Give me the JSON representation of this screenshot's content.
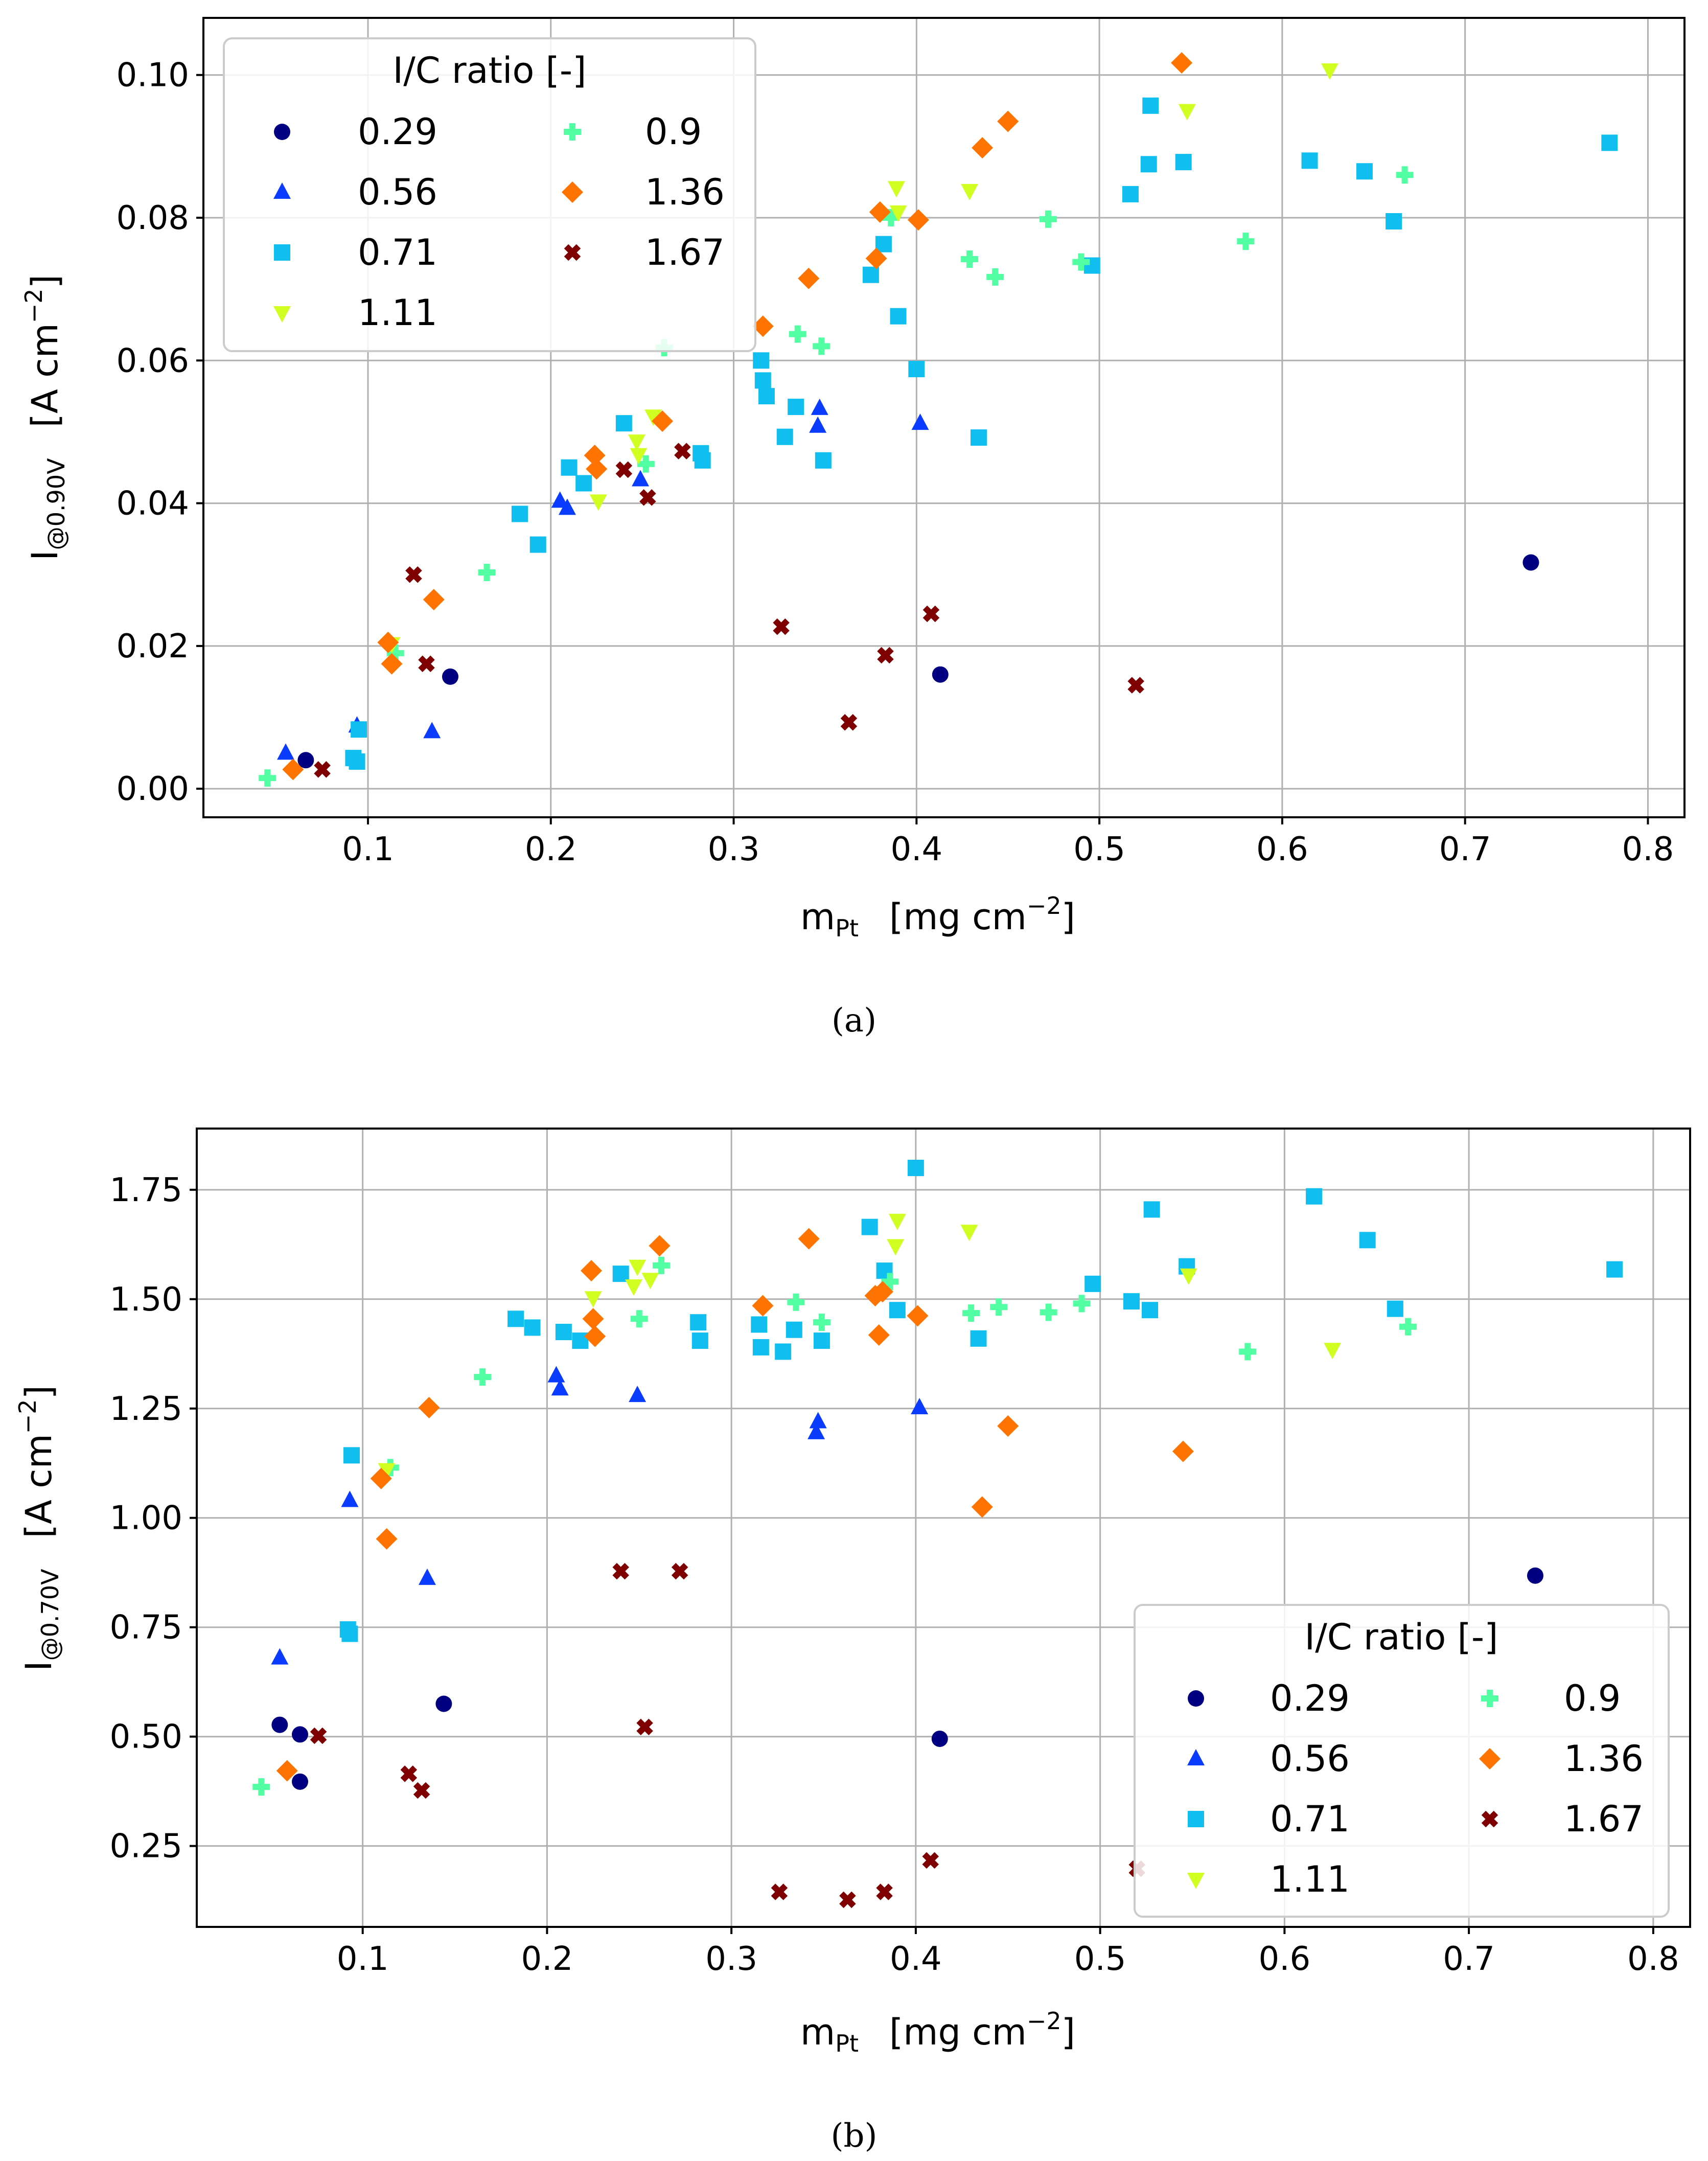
{
  "colors": {
    "0.29": "#000080",
    "0.56": "#0a3cff",
    "0.71": "#10bef0",
    "0.9": "#52ffa3",
    "1.11": "#d0ff22",
    "1.36": "#ff7300",
    "1.67": "#7f0000"
  },
  "chart_data": [
    {
      "type": "scatter",
      "caption": "(a)",
      "xlabel": "m",
      "xlabel_sub": "Pt",
      "xlabel_units": "[mg cm",
      "xlabel_exp": "−2",
      "xlabel_close": "]",
      "ylabel": "I",
      "ylabel_sub": "@0.90V",
      "ylabel_units": "[A cm",
      "ylabel_exp": "−2",
      "ylabel_close": "]",
      "xlim": [
        0.01,
        0.82
      ],
      "ylim": [
        -0.004,
        0.108
      ],
      "xticks": [
        "0.1",
        "0.2",
        "0.3",
        "0.4",
        "0.5",
        "0.6",
        "0.7",
        "0.8"
      ],
      "yticks": [
        "0.00",
        "0.02",
        "0.04",
        "0.06",
        "0.08",
        "0.10"
      ],
      "legend": {
        "title": "I/C ratio [-]",
        "placement": "upper-left",
        "col1": [
          "0.29",
          "0.56",
          "0.71",
          "1.11"
        ],
        "col2": [
          "0.9",
          "1.36",
          "1.67"
        ]
      },
      "series": [
        {
          "name": "0.29",
          "marker": "circle",
          "points": [
            [
              0.066,
              0.004
            ],
            [
              0.145,
              0.0157
            ],
            [
              0.413,
              0.016
            ],
            [
              0.736,
              0.0317
            ]
          ]
        },
        {
          "name": "0.56",
          "marker": "triangle",
          "points": [
            [
              0.055,
              0.005
            ],
            [
              0.094,
              0.0088
            ],
            [
              0.135,
              0.008
            ],
            [
              0.205,
              0.0403
            ],
            [
              0.209,
              0.0393
            ],
            [
              0.249,
              0.0433
            ],
            [
              0.346,
              0.0508
            ],
            [
              0.347,
              0.0533
            ],
            [
              0.402,
              0.0512
            ]
          ]
        },
        {
          "name": "0.71",
          "marker": "square",
          "points": [
            [
              0.092,
              0.0043
            ],
            [
              0.094,
              0.0038
            ],
            [
              0.095,
              0.0083
            ],
            [
              0.183,
              0.0385
            ],
            [
              0.193,
              0.0342
            ],
            [
              0.21,
              0.045
            ],
            [
              0.218,
              0.0428
            ],
            [
              0.24,
              0.0512
            ],
            [
              0.282,
              0.047
            ],
            [
              0.283,
              0.046
            ],
            [
              0.315,
              0.06
            ],
            [
              0.316,
              0.0572
            ],
            [
              0.318,
              0.055
            ],
            [
              0.328,
              0.0493
            ],
            [
              0.334,
              0.0535
            ],
            [
              0.349,
              0.046
            ],
            [
              0.375,
              0.072
            ],
            [
              0.382,
              0.0763
            ],
            [
              0.39,
              0.0662
            ],
            [
              0.4,
              0.0588
            ],
            [
              0.434,
              0.0492
            ],
            [
              0.496,
              0.0733
            ],
            [
              0.517,
              0.0833
            ],
            [
              0.527,
              0.0875
            ],
            [
              0.528,
              0.0957
            ],
            [
              0.546,
              0.0878
            ],
            [
              0.615,
              0.088
            ],
            [
              0.645,
              0.0865
            ],
            [
              0.661,
              0.0795
            ],
            [
              0.779,
              0.0905
            ]
          ]
        },
        {
          "name": "0.9",
          "marker": "plus",
          "points": [
            [
              0.045,
              0.0015
            ],
            [
              0.115,
              0.019
            ],
            [
              0.165,
              0.0303
            ],
            [
              0.252,
              0.0455
            ],
            [
              0.262,
              0.0618
            ],
            [
              0.335,
              0.0637
            ],
            [
              0.348,
              0.062
            ],
            [
              0.386,
              0.08
            ],
            [
              0.429,
              0.0742
            ],
            [
              0.443,
              0.0717
            ],
            [
              0.472,
              0.0798
            ],
            [
              0.49,
              0.0738
            ],
            [
              0.58,
              0.0767
            ],
            [
              0.667,
              0.086
            ]
          ]
        },
        {
          "name": "1.11",
          "marker": "triangle-down",
          "points": [
            [
              0.113,
              0.0203
            ],
            [
              0.226,
              0.0403
            ],
            [
              0.247,
              0.0487
            ],
            [
              0.248,
              0.0468
            ],
            [
              0.256,
              0.0522
            ],
            [
              0.389,
              0.0842
            ],
            [
              0.39,
              0.0808
            ],
            [
              0.429,
              0.0838
            ],
            [
              0.548,
              0.095
            ],
            [
              0.626,
              0.1007
            ]
          ]
        },
        {
          "name": "1.36",
          "marker": "diamond",
          "points": [
            [
              0.059,
              0.0027
            ],
            [
              0.111,
              0.0205
            ],
            [
              0.113,
              0.0175
            ],
            [
              0.136,
              0.0265
            ],
            [
              0.224,
              0.0467
            ],
            [
              0.225,
              0.0448
            ],
            [
              0.261,
              0.0515
            ],
            [
              0.316,
              0.0648
            ],
            [
              0.341,
              0.0715
            ],
            [
              0.378,
              0.0743
            ],
            [
              0.38,
              0.0808
            ],
            [
              0.401,
              0.0797
            ],
            [
              0.436,
              0.0898
            ],
            [
              0.45,
              0.0935
            ],
            [
              0.545,
              0.1017
            ]
          ]
        },
        {
          "name": "1.67",
          "marker": "x",
          "points": [
            [
              0.075,
              0.0027
            ],
            [
              0.125,
              0.03
            ],
            [
              0.132,
              0.0175
            ],
            [
              0.24,
              0.0447
            ],
            [
              0.253,
              0.0408
            ],
            [
              0.272,
              0.0473
            ],
            [
              0.326,
              0.0227
            ],
            [
              0.363,
              0.0093
            ],
            [
              0.383,
              0.0187
            ],
            [
              0.408,
              0.0245
            ],
            [
              0.52,
              0.0145
            ]
          ]
        }
      ]
    },
    {
      "type": "scatter",
      "caption": "(b)",
      "xlabel": "m",
      "xlabel_sub": "Pt",
      "xlabel_units": "[mg cm",
      "xlabel_exp": "−2",
      "xlabel_close": "]",
      "ylabel": "I",
      "ylabel_sub": "@0.70V",
      "ylabel_units": "[A cm",
      "ylabel_exp": "−2",
      "ylabel_close": "]",
      "xlim": [
        0.01,
        0.82
      ],
      "ylim": [
        0.065,
        1.89
      ],
      "xticks": [
        "0.1",
        "0.2",
        "0.3",
        "0.4",
        "0.5",
        "0.6",
        "0.7",
        "0.8"
      ],
      "yticks": [
        "0.25",
        "0.50",
        "0.75",
        "1.00",
        "1.25",
        "1.50",
        "1.75"
      ],
      "legend": {
        "title": "I/C ratio [-]",
        "placement": "lower-right",
        "col1": [
          "0.29",
          "0.56",
          "0.71",
          "1.11"
        ],
        "col2": [
          "0.9",
          "1.36",
          "1.67"
        ]
      },
      "series": [
        {
          "name": "0.29",
          "marker": "circle",
          "points": [
            [
              0.055,
              0.527
            ],
            [
              0.066,
              0.505
            ],
            [
              0.066,
              0.397
            ],
            [
              0.144,
              0.575
            ],
            [
              0.413,
              0.495
            ],
            [
              0.736,
              0.868
            ]
          ]
        },
        {
          "name": "0.56",
          "marker": "triangle",
          "points": [
            [
              0.055,
              0.68
            ],
            [
              0.093,
              1.04
            ],
            [
              0.135,
              0.862
            ],
            [
              0.205,
              1.325
            ],
            [
              0.207,
              1.295
            ],
            [
              0.249,
              1.28
            ],
            [
              0.346,
              1.195
            ],
            [
              0.347,
              1.22
            ],
            [
              0.402,
              1.252
            ]
          ]
        },
        {
          "name": "0.71",
          "marker": "square",
          "points": [
            [
              0.092,
              0.745
            ],
            [
              0.093,
              0.735
            ],
            [
              0.094,
              1.143
            ],
            [
              0.183,
              1.455
            ],
            [
              0.192,
              1.435
            ],
            [
              0.209,
              1.425
            ],
            [
              0.218,
              1.405
            ],
            [
              0.24,
              1.558
            ],
            [
              0.282,
              1.447
            ],
            [
              0.283,
              1.405
            ],
            [
              0.315,
              1.442
            ],
            [
              0.316,
              1.39
            ],
            [
              0.328,
              1.38
            ],
            [
              0.334,
              1.43
            ],
            [
              0.349,
              1.405
            ],
            [
              0.375,
              1.665
            ],
            [
              0.383,
              1.565
            ],
            [
              0.39,
              1.475
            ],
            [
              0.4,
              1.8
            ],
            [
              0.434,
              1.41
            ],
            [
              0.496,
              1.535
            ],
            [
              0.517,
              1.495
            ],
            [
              0.527,
              1.475
            ],
            [
              0.528,
              1.705
            ],
            [
              0.547,
              1.575
            ],
            [
              0.616,
              1.735
            ],
            [
              0.645,
              1.635
            ],
            [
              0.66,
              1.478
            ],
            [
              0.779,
              1.568
            ]
          ]
        },
        {
          "name": "0.9",
          "marker": "plus",
          "points": [
            [
              0.045,
              0.385
            ],
            [
              0.115,
              1.115
            ],
            [
              0.165,
              1.322
            ],
            [
              0.25,
              1.455
            ],
            [
              0.262,
              1.577
            ],
            [
              0.335,
              1.493
            ],
            [
              0.349,
              1.447
            ],
            [
              0.386,
              1.54
            ],
            [
              0.43,
              1.468
            ],
            [
              0.445,
              1.482
            ],
            [
              0.472,
              1.47
            ],
            [
              0.49,
              1.49
            ],
            [
              0.58,
              1.38
            ],
            [
              0.667,
              1.437
            ]
          ]
        },
        {
          "name": "1.11",
          "marker": "triangle-down",
          "points": [
            [
              0.113,
              1.11
            ],
            [
              0.225,
              1.503
            ],
            [
              0.247,
              1.53
            ],
            [
              0.249,
              1.575
            ],
            [
              0.256,
              1.545
            ],
            [
              0.389,
              1.622
            ],
            [
              0.39,
              1.68
            ],
            [
              0.429,
              1.655
            ],
            [
              0.548,
              1.555
            ],
            [
              0.626,
              1.385
            ]
          ]
        },
        {
          "name": "1.36",
          "marker": "diamond",
          "points": [
            [
              0.059,
              0.422
            ],
            [
              0.11,
              1.09
            ],
            [
              0.113,
              0.952
            ],
            [
              0.136,
              1.252
            ],
            [
              0.224,
              1.565
            ],
            [
              0.225,
              1.455
            ],
            [
              0.226,
              1.415
            ],
            [
              0.261,
              1.622
            ],
            [
              0.317,
              1.485
            ],
            [
              0.342,
              1.638
            ],
            [
              0.378,
              1.508
            ],
            [
              0.38,
              1.418
            ],
            [
              0.382,
              1.517
            ],
            [
              0.401,
              1.462
            ],
            [
              0.436,
              1.025
            ],
            [
              0.45,
              1.21
            ],
            [
              0.545,
              1.152
            ]
          ]
        },
        {
          "name": "1.67",
          "marker": "x",
          "points": [
            [
              0.076,
              0.502
            ],
            [
              0.125,
              0.415
            ],
            [
              0.132,
              0.377
            ],
            [
              0.24,
              0.878
            ],
            [
              0.253,
              0.522
            ],
            [
              0.272,
              0.878
            ],
            [
              0.326,
              0.145
            ],
            [
              0.363,
              0.127
            ],
            [
              0.383,
              0.145
            ],
            [
              0.408,
              0.217
            ],
            [
              0.52,
              0.198
            ]
          ]
        }
      ]
    }
  ]
}
